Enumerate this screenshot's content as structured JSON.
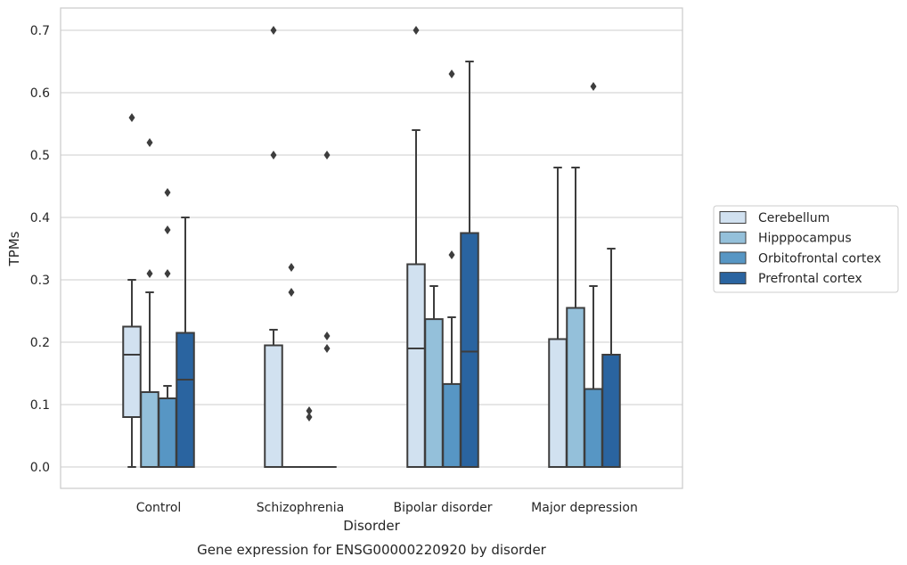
{
  "chart_data": {
    "type": "box",
    "xlabel": "Disorder",
    "ylabel": "TPMs",
    "caption": "Gene expression for ENSG00000220920 by disorder",
    "ylim": [
      -0.035,
      0.735
    ],
    "yticks": [
      "0.0",
      "0.1",
      "0.2",
      "0.3",
      "0.4",
      "0.5",
      "0.6",
      "0.7"
    ],
    "ytick_values": [
      0.0,
      0.1,
      0.2,
      0.3,
      0.4,
      0.5,
      0.6,
      0.7
    ],
    "grid": true,
    "legend_position": "right",
    "categories": [
      "Control",
      "Schizophrenia",
      "Bipolar disorder",
      "Major depression"
    ],
    "series": [
      {
        "name": "Cerebellum",
        "color": "#d1e1f0",
        "boxes": [
          {
            "whislo": 0.0,
            "q1": 0.08,
            "med": 0.18,
            "q3": 0.225,
            "whishi": 0.3,
            "fliers": [
              0.56
            ]
          },
          {
            "whislo": 0.0,
            "q1": 0.0,
            "med": 0.0,
            "q3": 0.195,
            "whishi": 0.22,
            "fliers": [
              0.5,
              0.7
            ]
          },
          {
            "whislo": 0.0,
            "q1": 0.0,
            "med": 0.19,
            "q3": 0.325,
            "whishi": 0.54,
            "fliers": [
              0.7
            ]
          },
          {
            "whislo": 0.0,
            "q1": 0.0,
            "med": 0.0,
            "q3": 0.205,
            "whishi": 0.48,
            "fliers": []
          }
        ]
      },
      {
        "name": "Hipppocampus",
        "color": "#94c0da",
        "boxes": [
          {
            "whislo": 0.0,
            "q1": 0.0,
            "med": 0.0,
            "q3": 0.12,
            "whishi": 0.28,
            "fliers": [
              0.31,
              0.52
            ]
          },
          {
            "whislo": 0.0,
            "q1": 0.0,
            "med": 0.0,
            "q3": 0.0,
            "whishi": 0.0,
            "fliers": [
              0.28,
              0.32
            ]
          },
          {
            "whislo": 0.0,
            "q1": 0.0,
            "med": 0.0,
            "q3": 0.237,
            "whishi": 0.29,
            "fliers": []
          },
          {
            "whislo": 0.0,
            "q1": 0.0,
            "med": 0.0,
            "q3": 0.255,
            "whishi": 0.48,
            "fliers": []
          }
        ]
      },
      {
        "name": "Orbitofrontal cortex",
        "color": "#5796c4",
        "boxes": [
          {
            "whislo": 0.0,
            "q1": 0.0,
            "med": 0.0,
            "q3": 0.11,
            "whishi": 0.13,
            "fliers": [
              0.31,
              0.38,
              0.44
            ]
          },
          {
            "whislo": 0.0,
            "q1": 0.0,
            "med": 0.0,
            "q3": 0.0,
            "whishi": 0.0,
            "fliers": [
              0.08,
              0.09
            ]
          },
          {
            "whislo": 0.0,
            "q1": 0.0,
            "med": 0.0,
            "q3": 0.133,
            "whishi": 0.24,
            "fliers": [
              0.34,
              0.63
            ]
          },
          {
            "whislo": 0.0,
            "q1": 0.0,
            "med": 0.0,
            "q3": 0.125,
            "whishi": 0.29,
            "fliers": [
              0.61
            ]
          }
        ]
      },
      {
        "name": "Prefrontal cortex",
        "color": "#2a64a0",
        "boxes": [
          {
            "whislo": 0.0,
            "q1": 0.0,
            "med": 0.14,
            "q3": 0.215,
            "whishi": 0.4,
            "fliers": []
          },
          {
            "whislo": 0.0,
            "q1": 0.0,
            "med": 0.0,
            "q3": 0.0,
            "whishi": 0.0,
            "fliers": [
              0.19,
              0.21,
              0.5
            ]
          },
          {
            "whislo": 0.0,
            "q1": 0.0,
            "med": 0.185,
            "q3": 0.375,
            "whishi": 0.65,
            "fliers": []
          },
          {
            "whislo": 0.0,
            "q1": 0.0,
            "med": 0.0,
            "q3": 0.18,
            "whishi": 0.35,
            "fliers": []
          }
        ]
      }
    ]
  }
}
